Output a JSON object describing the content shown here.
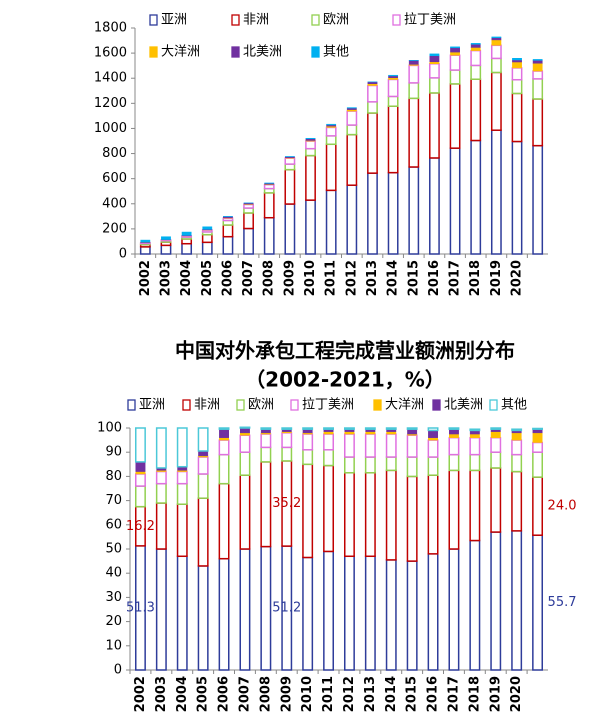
{
  "chart_data": [
    {
      "type": "bar",
      "stacked": true,
      "categories": [
        "2002",
        "2003",
        "2004",
        "2005",
        "2006",
        "2007",
        "2008",
        "2009",
        "2010",
        "2011",
        "2012",
        "2013",
        "2014",
        "2015",
        "2016",
        "2017",
        "2018",
        "2019",
        "2020",
        null
      ],
      "ylim": [
        0,
        1800
      ],
      "yticks": [
        0,
        200,
        400,
        600,
        800,
        1000,
        1200,
        1400,
        1600,
        1800
      ],
      "series": [
        {
          "name": "亚洲",
          "color": "#2e3c9a",
          "filled": false,
          "values": [
            57,
            69,
            82,
            93,
            138,
            203,
            289,
            398,
            429,
            507,
            548,
            644,
            648,
            693,
            765,
            843,
            904,
            986,
            896,
            863
          ]
        },
        {
          "name": "非洲",
          "color": "#c00000",
          "filled": false,
          "values": [
            18,
            26,
            38,
            61,
            93,
            124,
            198,
            274,
            355,
            367,
            403,
            479,
            529,
            547,
            518,
            512,
            488,
            460,
            383,
            372
          ]
        },
        {
          "name": "欧洲",
          "color": "#92d050",
          "filled": false,
          "values": [
            9,
            11,
            15,
            22,
            36,
            39,
            34,
            44,
            55,
            67,
            76,
            89,
            78,
            123,
            120,
            110,
            110,
            112,
            109,
            160
          ]
        },
        {
          "name": "拉丁美洲",
          "color": "#e070e0",
          "filled": false,
          "values": [
            6,
            7,
            9,
            15,
            18,
            28,
            31,
            47,
            60,
            67,
            111,
            130,
            135,
            139,
            112,
            118,
            118,
            104,
            94,
            62
          ]
        },
        {
          "name": "大洋洲",
          "color": "#ffc000",
          "filled": true,
          "values": [
            1,
            1,
            1,
            1,
            3,
            4,
            3,
            4,
            5,
            10,
            12,
            14,
            14,
            8,
            16,
            25,
            25,
            43,
            47,
            62
          ]
        },
        {
          "name": "北美洲",
          "color": "#7030a0",
          "filled": true,
          "values": [
            4,
            1,
            3,
            4,
            10,
            8,
            8,
            8,
            14,
            10,
            12,
            14,
            14,
            31,
            48,
            34,
            25,
            17,
            16,
            23
          ]
        },
        {
          "name": "其他",
          "color": "#00b0f0",
          "filled": true,
          "values": [
            16,
            23,
            27,
            21,
            2,
            1,
            3,
            2,
            4,
            6,
            4,
            1,
            6,
            2,
            15,
            8,
            8,
            7,
            14,
            8
          ]
        }
      ]
    },
    {
      "type": "bar",
      "stacked": true,
      "title": "中国对外承包工程完成营业额洲别分布",
      "subtitle": "（2002-2021，%）",
      "categories": [
        "2002",
        "2003",
        "2004",
        "2005",
        "2006",
        "2007",
        "2008",
        "2009",
        "2010",
        "2011",
        "2012",
        "2013",
        "2014",
        "2015",
        "2016",
        "2017",
        "2018",
        "2019",
        "2020",
        null
      ],
      "ylim": [
        0,
        100
      ],
      "yticks": [
        0,
        10,
        20,
        30,
        40,
        50,
        60,
        70,
        80,
        90,
        100
      ],
      "series": [
        {
          "name": "亚洲",
          "color": "#2e3c9a",
          "filled": false,
          "values": [
            51.3,
            50,
            47,
            43,
            46,
            50,
            51,
            51.2,
            46.5,
            49,
            47,
            47,
            45.5,
            45,
            48,
            50,
            53.5,
            57,
            57.5,
            55.7
          ],
          "value_labels": [
            "51.3",
            null,
            null,
            null,
            null,
            null,
            null,
            "51.2",
            null,
            null,
            null,
            null,
            null,
            null,
            null,
            null,
            null,
            null,
            null,
            "55.7"
          ]
        },
        {
          "name": "非洲",
          "color": "#c00000",
          "filled": false,
          "values": [
            16.2,
            19,
            21.5,
            28,
            31,
            30.5,
            35,
            35.2,
            38.5,
            35.5,
            34.5,
            34.5,
            37,
            35,
            32.5,
            32.5,
            29,
            26.5,
            24.5,
            24.0
          ],
          "value_labels": [
            "16.2",
            null,
            null,
            null,
            null,
            null,
            null,
            "35.2",
            null,
            null,
            null,
            null,
            null,
            null,
            null,
            null,
            null,
            null,
            null,
            "24.0"
          ]
        },
        {
          "name": "欧洲",
          "color": "#92d050",
          "filled": false,
          "values": [
            8.5,
            8,
            8.5,
            10,
            12,
            9.5,
            6,
            5.6,
            6,
            6.5,
            6.5,
            6.5,
            5.5,
            8,
            7.5,
            6.5,
            6.5,
            6.5,
            7,
            10.3
          ]
        },
        {
          "name": "拉丁美洲",
          "color": "#e070e0",
          "filled": false,
          "values": [
            5,
            5,
            5,
            7,
            6,
            7,
            5.5,
            6,
            6.5,
            6.5,
            9.5,
            9.5,
            9.5,
            9,
            7,
            7,
            7,
            6,
            6,
            4
          ]
        },
        {
          "name": "大洋洲",
          "color": "#ffc000",
          "filled": true,
          "values": [
            1,
            0.5,
            0.5,
            0.5,
            1,
            1,
            0.5,
            0.5,
            0.5,
            1,
            1,
            1,
            1,
            0.5,
            1,
            1.5,
            1.5,
            2.5,
            3,
            4
          ]
        },
        {
          "name": "北美洲",
          "color": "#7030a0",
          "filled": true,
          "values": [
            4,
            1,
            1.5,
            2,
            3.5,
            2,
            1.5,
            1,
            1.5,
            1,
            1,
            1,
            1,
            2,
            3,
            2,
            1.5,
            1,
            1,
            1.5
          ]
        },
        {
          "name": "其他",
          "color": "#4bc8d8",
          "filled": false,
          "values": [
            14,
            16.5,
            16,
            9.5,
            0.5,
            0.3,
            0.5,
            0.5,
            0.5,
            0.5,
            0.5,
            0.5,
            0.5,
            0.5,
            1,
            0.5,
            0.5,
            0.5,
            0.5,
            0.3
          ]
        }
      ]
    }
  ]
}
